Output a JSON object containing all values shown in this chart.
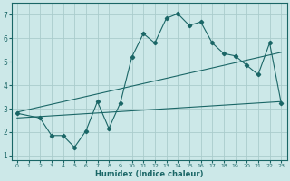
{
  "title": "",
  "xlabel": "Humidex (Indice chaleur)",
  "ylabel": "",
  "bg_color": "#cce8e8",
  "grid_color": "#aacccc",
  "line_color": "#1a6666",
  "xlim": [
    -0.5,
    23.5
  ],
  "ylim": [
    0.8,
    7.5
  ],
  "xticks": [
    0,
    1,
    2,
    3,
    4,
    5,
    6,
    7,
    8,
    9,
    10,
    11,
    12,
    13,
    14,
    15,
    16,
    17,
    18,
    19,
    20,
    21,
    22,
    23
  ],
  "yticks": [
    1,
    2,
    3,
    4,
    5,
    6,
    7
  ],
  "line1": {
    "x": [
      0,
      2,
      3,
      4,
      5,
      6,
      7,
      8,
      9,
      10,
      11,
      12,
      13,
      14,
      15,
      16,
      17,
      18,
      19,
      20,
      21,
      22,
      23
    ],
    "y": [
      2.8,
      2.6,
      1.85,
      1.85,
      1.35,
      2.05,
      3.3,
      2.15,
      3.25,
      5.2,
      6.2,
      5.8,
      6.85,
      7.05,
      6.55,
      6.7,
      5.8,
      5.35,
      5.25,
      4.85,
      4.45,
      5.8,
      3.25
    ]
  },
  "line2": {
    "x": [
      0,
      23
    ],
    "y": [
      2.85,
      5.4
    ]
  },
  "line3": {
    "x": [
      0,
      23
    ],
    "y": [
      2.6,
      3.3
    ]
  }
}
